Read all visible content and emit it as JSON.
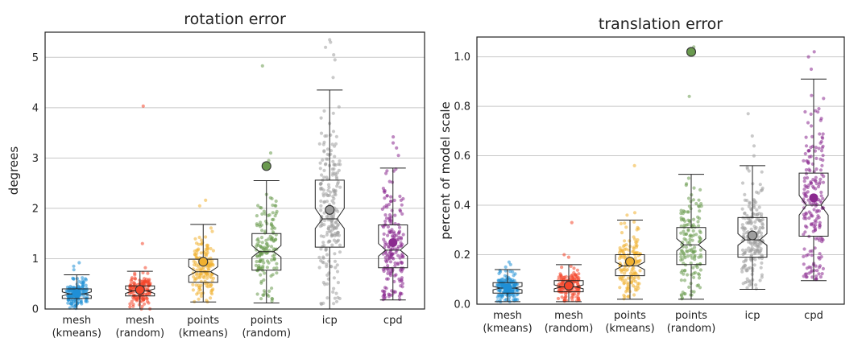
{
  "chart_data": [
    {
      "type": "box",
      "title": "rotation error",
      "xlabel": "",
      "ylabel": "degrees",
      "ylim": [
        0,
        5.5
      ],
      "yticks": [
        0,
        1,
        2,
        3,
        4,
        5
      ],
      "ytick_labels": [
        "0",
        "1",
        "2",
        "3",
        "4",
        "5"
      ],
      "grid": "horizontal",
      "categories": [
        "mesh\n(kmeans)",
        "mesh\n(random)",
        "points\n(kmeans)",
        "points\n(random)",
        "icp",
        "cpd"
      ],
      "colors": [
        "#1f8fd6",
        "#f4462a",
        "#f0b030",
        "#6a9a4e",
        "#9e9e9e",
        "#8b2a8f"
      ],
      "boxes": [
        {
          "whislo": 0.0,
          "q1": 0.21,
          "med": 0.3,
          "q3": 0.4,
          "whishi": 0.68,
          "notch": [
            0.26,
            0.34
          ],
          "mean": 0.31,
          "mean_outline": false
        },
        {
          "whislo": 0.0,
          "q1": 0.26,
          "med": 0.36,
          "q3": 0.46,
          "whishi": 0.75,
          "notch": [
            0.31,
            0.4
          ],
          "mean": 0.38,
          "mean_outline": true
        },
        {
          "whislo": 0.14,
          "q1": 0.53,
          "med": 0.74,
          "q3": 0.99,
          "whishi": 1.68,
          "notch": [
            0.66,
            0.84
          ],
          "mean": 0.94,
          "mean_outline": true
        },
        {
          "whislo": 0.12,
          "q1": 0.77,
          "med": 1.14,
          "q3": 1.5,
          "whishi": 2.55,
          "notch": [
            1.03,
            1.26
          ],
          "mean": 2.84,
          "mean_outline": true
        },
        {
          "whislo": 0.0,
          "q1": 1.23,
          "med": 1.79,
          "q3": 2.56,
          "whishi": 4.35,
          "notch": [
            1.6,
            2.0
          ],
          "mean": 1.97,
          "mean_outline": true
        },
        {
          "whislo": 0.18,
          "q1": 0.82,
          "med": 1.17,
          "q3": 1.67,
          "whishi": 2.8,
          "notch": [
            1.05,
            1.3
          ],
          "mean": 1.32,
          "mean_outline": false
        }
      ],
      "points": [
        {
          "n": 150,
          "lo": 0.0,
          "hi": 0.68,
          "center": 0.29,
          "spread": 0.14,
          "outliers": [
            0.85,
            0.92,
            0.78
          ]
        },
        {
          "n": 150,
          "lo": 0.0,
          "hi": 0.75,
          "center": 0.36,
          "spread": 0.16,
          "outliers": [
            1.3,
            4.03,
            0.82
          ]
        },
        {
          "n": 150,
          "lo": 0.14,
          "hi": 1.68,
          "center": 0.76,
          "spread": 0.34,
          "outliers": [
            2.05,
            2.16
          ]
        },
        {
          "n": 150,
          "lo": 0.12,
          "hi": 2.55,
          "center": 1.15,
          "spread": 0.5,
          "outliers": [
            2.95,
            3.1,
            4.83
          ]
        },
        {
          "n": 220,
          "lo": 0.0,
          "hi": 4.35,
          "center": 1.9,
          "spread": 0.95,
          "outliers": [
            4.6,
            4.95,
            5.05,
            5.2,
            5.3,
            5.35
          ]
        },
        {
          "n": 190,
          "lo": 0.18,
          "hi": 2.8,
          "center": 1.25,
          "spread": 0.65,
          "outliers": [
            3.05,
            3.2,
            3.3,
            3.42
          ]
        }
      ]
    },
    {
      "type": "box",
      "title": "translation error",
      "xlabel": "",
      "ylabel": "percent of model scale",
      "ylim": [
        0,
        1.08
      ],
      "yticks": [
        0.0,
        0.2,
        0.4,
        0.6,
        0.8,
        1.0
      ],
      "ytick_labels": [
        "0.0",
        "0.2",
        "0.4",
        "0.6",
        "0.8",
        "1.0"
      ],
      "grid": "horizontal",
      "categories": [
        "mesh\n(kmeans)",
        "mesh\n(random)",
        "points\n(kmeans)",
        "points\n(random)",
        "icp",
        "cpd"
      ],
      "colors": [
        "#1f8fd6",
        "#f4462a",
        "#f0b030",
        "#6a9a4e",
        "#9e9e9e",
        "#8b2a8f"
      ],
      "boxes": [
        {
          "whislo": 0.01,
          "q1": 0.045,
          "med": 0.065,
          "q3": 0.087,
          "whishi": 0.14,
          "notch": [
            0.058,
            0.072
          ],
          "mean": 0.066,
          "mean_outline": false
        },
        {
          "whislo": 0.01,
          "q1": 0.05,
          "med": 0.07,
          "q3": 0.095,
          "whishi": 0.16,
          "notch": [
            0.062,
            0.078
          ],
          "mean": 0.075,
          "mean_outline": true
        },
        {
          "whislo": 0.02,
          "q1": 0.115,
          "med": 0.155,
          "q3": 0.2,
          "whishi": 0.34,
          "notch": [
            0.14,
            0.17
          ],
          "mean": 0.172,
          "mean_outline": true
        },
        {
          "whislo": 0.02,
          "q1": 0.16,
          "med": 0.24,
          "q3": 0.31,
          "whishi": 0.525,
          "notch": [
            0.215,
            0.265
          ],
          "mean": 1.02,
          "mean_outline": true
        },
        {
          "whislo": 0.06,
          "q1": 0.19,
          "med": 0.26,
          "q3": 0.35,
          "whishi": 0.56,
          "notch": [
            0.238,
            0.285
          ],
          "mean": 0.278,
          "mean_outline": true
        },
        {
          "whislo": 0.095,
          "q1": 0.275,
          "med": 0.4,
          "q3": 0.53,
          "whishi": 0.91,
          "notch": [
            0.36,
            0.44
          ],
          "mean": 0.43,
          "mean_outline": false
        }
      ],
      "points": [
        {
          "n": 150,
          "lo": 0.01,
          "hi": 0.14,
          "center": 0.066,
          "spread": 0.03,
          "outliers": [
            0.15,
            0.16,
            0.17
          ]
        },
        {
          "n": 150,
          "lo": 0.01,
          "hi": 0.16,
          "center": 0.072,
          "spread": 0.035,
          "outliers": [
            0.19,
            0.2,
            0.33
          ]
        },
        {
          "n": 150,
          "lo": 0.02,
          "hi": 0.34,
          "center": 0.16,
          "spread": 0.07,
          "outliers": [
            0.36,
            0.37,
            0.56
          ]
        },
        {
          "n": 150,
          "lo": 0.02,
          "hi": 0.525,
          "center": 0.24,
          "spread": 0.11,
          "outliers": [
            0.84,
            1.04
          ]
        },
        {
          "n": 200,
          "lo": 0.06,
          "hi": 0.56,
          "center": 0.27,
          "spread": 0.11,
          "outliers": [
            0.6,
            0.64,
            0.68,
            0.77
          ]
        },
        {
          "n": 190,
          "lo": 0.095,
          "hi": 0.91,
          "center": 0.42,
          "spread": 0.2,
          "outliers": [
            0.95,
            1.0,
            1.02
          ]
        }
      ]
    }
  ]
}
